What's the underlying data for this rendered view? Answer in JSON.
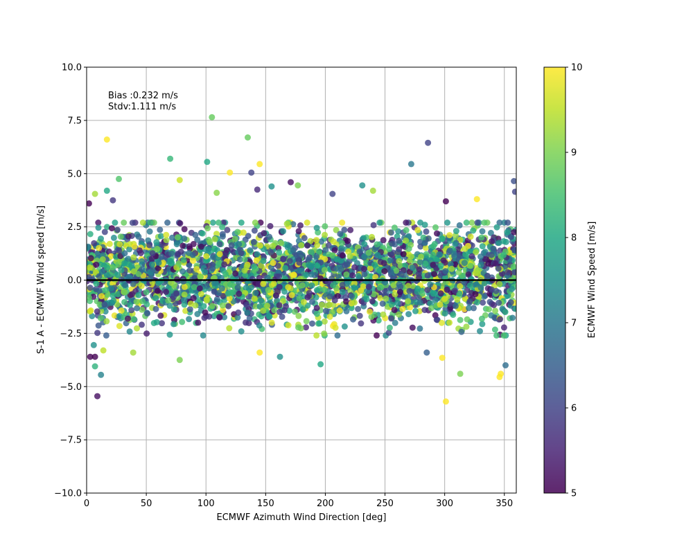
{
  "chart_data": {
    "type": "scatter",
    "xlabel": "ECMWF Azimuth Wind Direction [deg]",
    "ylabel": "S-1 A - ECMWF Wind speed [m/s]",
    "xlim": [
      0,
      360
    ],
    "ylim": [
      -10,
      10
    ],
    "x_ticks": [
      0,
      50,
      100,
      150,
      200,
      250,
      300,
      350
    ],
    "y_ticks": [
      -10.0,
      -7.5,
      -5.0,
      -2.5,
      0.0,
      2.5,
      5.0,
      7.5,
      10.0
    ],
    "grid": true,
    "annotations": [
      "Bias :0.232 m/s",
      "Stdv:1.111 m/s"
    ],
    "reference_line_y": 0,
    "colorbar": {
      "label": "ECMWF Wind Speed [m/s]",
      "range": [
        5,
        10
      ],
      "ticks": [
        5,
        6,
        7,
        8,
        9,
        10
      ],
      "colormap": "viridis"
    },
    "marker_alpha": 0.8,
    "outlier_points": [
      {
        "x": 2,
        "y": 3.6,
        "c": 5.0
      },
      {
        "x": 7,
        "y": 4.05,
        "c": 9.3
      },
      {
        "x": 17,
        "y": 6.6,
        "c": 10.0
      },
      {
        "x": 17,
        "y": 4.2,
        "c": 8.0
      },
      {
        "x": 22,
        "y": 3.75,
        "c": 5.8
      },
      {
        "x": 27,
        "y": 4.75,
        "c": 8.6
      },
      {
        "x": 70,
        "y": 5.7,
        "c": 8.3
      },
      {
        "x": 78,
        "y": 4.7,
        "c": 9.6
      },
      {
        "x": 101,
        "y": 5.55,
        "c": 8.0
      },
      {
        "x": 105,
        "y": 7.65,
        "c": 8.8
      },
      {
        "x": 109,
        "y": 4.1,
        "c": 9.1
      },
      {
        "x": 120,
        "y": 5.05,
        "c": 10.0
      },
      {
        "x": 135,
        "y": 6.7,
        "c": 8.8
      },
      {
        "x": 138,
        "y": 5.05,
        "c": 6.0
      },
      {
        "x": 145,
        "y": 5.45,
        "c": 10.0
      },
      {
        "x": 143,
        "y": 4.25,
        "c": 5.6
      },
      {
        "x": 155,
        "y": 4.4,
        "c": 7.5
      },
      {
        "x": 171,
        "y": 4.6,
        "c": 5.2
      },
      {
        "x": 177,
        "y": 4.45,
        "c": 9.0
      },
      {
        "x": 206,
        "y": 4.05,
        "c": 6.0
      },
      {
        "x": 231,
        "y": 4.45,
        "c": 7.5
      },
      {
        "x": 240,
        "y": 4.2,
        "c": 9.3
      },
      {
        "x": 272,
        "y": 5.45,
        "c": 7.0
      },
      {
        "x": 286,
        "y": 6.45,
        "c": 6.0
      },
      {
        "x": 301,
        "y": 3.7,
        "c": 5.0
      },
      {
        "x": 327,
        "y": 3.8,
        "c": 10.0
      },
      {
        "x": 358,
        "y": 4.65,
        "c": 6.2
      },
      {
        "x": 359,
        "y": 4.15,
        "c": 6.0
      },
      {
        "x": 3,
        "y": -3.6,
        "c": 5.0
      },
      {
        "x": 6,
        "y": -3.05,
        "c": 7.5
      },
      {
        "x": 7,
        "y": -4.05,
        "c": 8.2
      },
      {
        "x": 7,
        "y": -3.6,
        "c": 5.0
      },
      {
        "x": 9,
        "y": -5.45,
        "c": 5.2
      },
      {
        "x": 12,
        "y": -4.45,
        "c": 7.2
      },
      {
        "x": 14,
        "y": -3.3,
        "c": 9.5
      },
      {
        "x": 39,
        "y": -3.4,
        "c": 9.3
      },
      {
        "x": 78,
        "y": -3.75,
        "c": 9.0
      },
      {
        "x": 145,
        "y": -3.4,
        "c": 10.0
      },
      {
        "x": 162,
        "y": -3.6,
        "c": 7.5
      },
      {
        "x": 196,
        "y": -3.95,
        "c": 8.0
      },
      {
        "x": 243,
        "y": -2.6,
        "c": 5.0
      },
      {
        "x": 285,
        "y": -3.4,
        "c": 6.5
      },
      {
        "x": 298,
        "y": -3.65,
        "c": 10.0
      },
      {
        "x": 301,
        "y": -5.7,
        "c": 10.0
      },
      {
        "x": 313,
        "y": -4.4,
        "c": 9.0
      },
      {
        "x": 346,
        "y": -4.55,
        "c": 10.0
      },
      {
        "x": 347,
        "y": -4.4,
        "c": 10.0
      },
      {
        "x": 351,
        "y": -4.0,
        "c": 6.8
      }
    ],
    "bulk_distribution": {
      "description_count": 3000,
      "y_mean": 0.232,
      "y_std": 1.111,
      "x_range": [
        0,
        360
      ],
      "c_range": [
        5,
        10
      ]
    }
  }
}
